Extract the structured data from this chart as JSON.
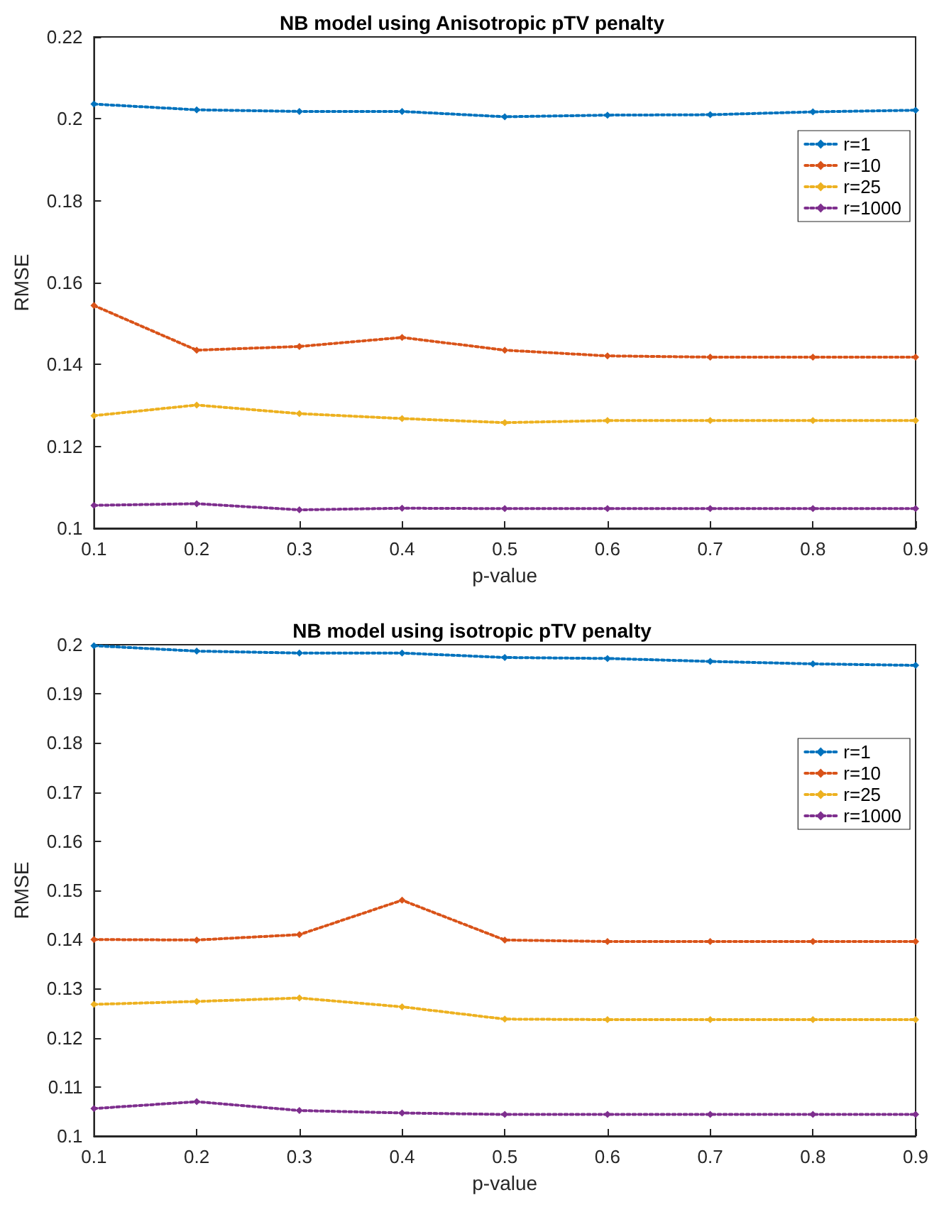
{
  "chart_data": [
    {
      "type": "line",
      "title": "NB model using Anisotropic pTV penalty",
      "xlabel": "p-value",
      "ylabel": "RMSE",
      "x": [
        0.1,
        0.2,
        0.3,
        0.4,
        0.5,
        0.6,
        0.7,
        0.8,
        0.9
      ],
      "xlim": [
        0.1,
        0.9
      ],
      "xticks": [
        0.1,
        0.2,
        0.3,
        0.4,
        0.5,
        0.6,
        0.7,
        0.8,
        0.9
      ],
      "ylim": [
        0.1,
        0.22
      ],
      "yticks": [
        0.1,
        0.12,
        0.14,
        0.16,
        0.18,
        0.2,
        0.22
      ],
      "grid": false,
      "legend": "top right",
      "marker": "diamond",
      "line_style": "dotted",
      "series": [
        {
          "name": "r=1",
          "color": "#0072bd",
          "values": [
            0.2036,
            0.2022,
            0.2018,
            0.2018,
            0.2005,
            0.2009,
            0.201,
            0.2017,
            0.2021
          ]
        },
        {
          "name": "r=10",
          "color": "#d95319",
          "values": [
            0.1544,
            0.1435,
            0.1444,
            0.1466,
            0.1435,
            0.1421,
            0.1418,
            0.1418,
            0.1418
          ]
        },
        {
          "name": "r=25",
          "color": "#edb120",
          "values": [
            0.1275,
            0.1301,
            0.128,
            0.1268,
            0.1258,
            0.1263,
            0.1263,
            0.1263,
            0.1263
          ]
        },
        {
          "name": "r=1000",
          "color": "#7e2f8e",
          "values": [
            0.1056,
            0.106,
            0.1045,
            0.1049,
            0.1048,
            0.1048,
            0.1048,
            0.1048,
            0.1048
          ]
        }
      ]
    },
    {
      "type": "line",
      "title": "NB model using isotropic pTV penalty",
      "xlabel": "p-value",
      "ylabel": "RMSE",
      "x": [
        0.1,
        0.2,
        0.3,
        0.4,
        0.5,
        0.6,
        0.7,
        0.8,
        0.9
      ],
      "xlim": [
        0.1,
        0.9
      ],
      "xticks": [
        0.1,
        0.2,
        0.3,
        0.4,
        0.5,
        0.6,
        0.7,
        0.8,
        0.9
      ],
      "ylim": [
        0.1,
        0.2
      ],
      "yticks": [
        0.1,
        0.11,
        0.12,
        0.13,
        0.14,
        0.15,
        0.16,
        0.17,
        0.18,
        0.19,
        0.2
      ],
      "grid": false,
      "legend": "top right",
      "marker": "diamond",
      "line_style": "dotted",
      "series": [
        {
          "name": "r=1",
          "color": "#0072bd",
          "values": [
            0.1998,
            0.1987,
            0.1983,
            0.1983,
            0.1974,
            0.1972,
            0.1966,
            0.1961,
            0.1958
          ]
        },
        {
          "name": "r=10",
          "color": "#d95319",
          "values": [
            0.14,
            0.1399,
            0.141,
            0.148,
            0.1399,
            0.1396,
            0.1396,
            0.1396,
            0.1396
          ]
        },
        {
          "name": "r=25",
          "color": "#edb120",
          "values": [
            0.1268,
            0.1274,
            0.1281,
            0.1263,
            0.1238,
            0.1237,
            0.1237,
            0.1237,
            0.1237
          ]
        },
        {
          "name": "r=1000",
          "color": "#7e2f8e",
          "values": [
            0.1056,
            0.107,
            0.1052,
            0.1047,
            0.1044,
            0.1044,
            0.1044,
            0.1044,
            0.1044
          ]
        }
      ]
    }
  ]
}
